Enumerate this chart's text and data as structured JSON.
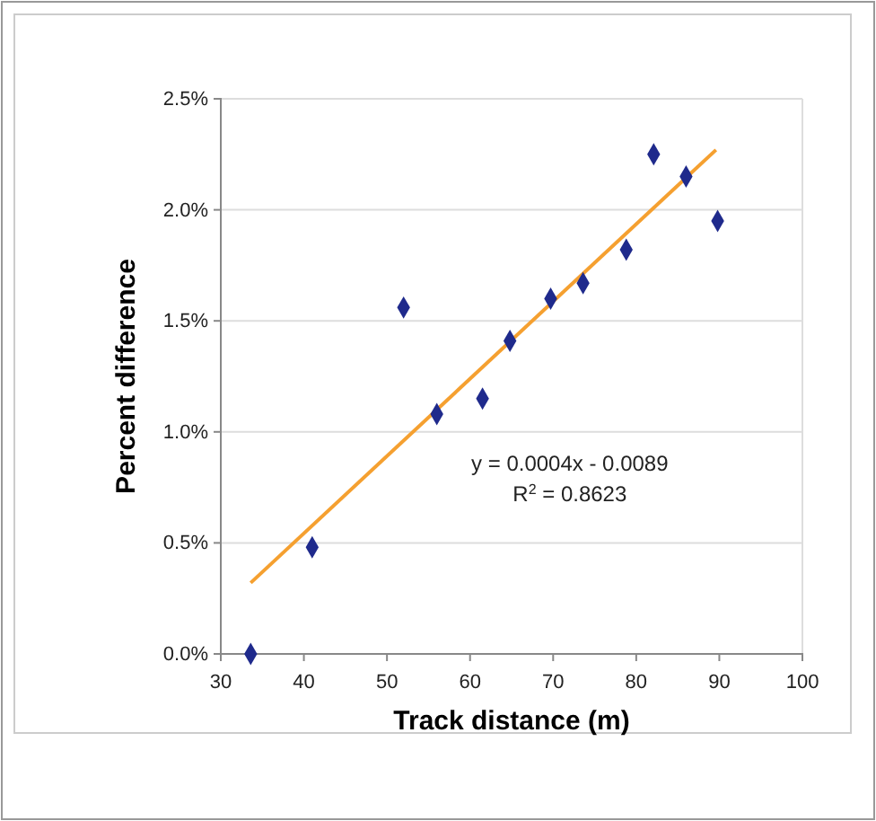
{
  "chart_data": {
    "type": "scatter",
    "xlabel": "Track distance (m)",
    "ylabel": "Percent difference",
    "x": [
      33.6,
      41.0,
      52.0,
      56.0,
      61.5,
      64.8,
      69.7,
      73.6,
      78.8,
      82.1,
      86.0,
      89.8
    ],
    "series": [
      {
        "type": "scatter",
        "color": "#1f2a8c",
        "values": [
          0.0,
          0.48,
          1.56,
          1.08,
          1.15,
          1.41,
          1.6,
          1.67,
          1.82,
          2.25,
          2.15,
          1.95
        ],
        "marker": "diamond"
      },
      {
        "type": "line",
        "color": "#f5a030",
        "x": [
          33.6,
          89.6
        ],
        "values": [
          0.32,
          2.27
        ],
        "marker": "none"
      }
    ],
    "annotations": [
      "y = 0.0004x - 0.0089",
      "R$^{2}$ = 0.8623"
    ],
    "xlim": [
      30,
      100
    ],
    "xticks": [
      30,
      40,
      50,
      60,
      70,
      80,
      90,
      100
    ],
    "ylim": [
      0,
      2.5
    ],
    "yticks": [
      {
        "value": 0,
        "label": "0.0%"
      },
      {
        "value": 0.5,
        "label": "0.5%"
      },
      {
        "value": 1,
        "label": "1.0%"
      },
      {
        "value": 1.5,
        "label": "1.5%"
      },
      {
        "value": 2,
        "label": "2.0%"
      },
      {
        "value": 2.5,
        "label": "2.5%"
      }
    ],
    "grid": "y"
  }
}
